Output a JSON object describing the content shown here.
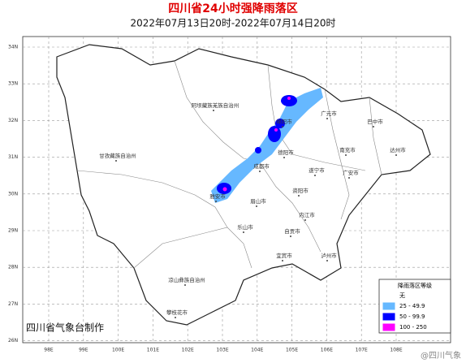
{
  "header": {
    "title": "四川省24小时强降雨落区",
    "subtitle": "2022年07月13日20时-2022年07月14日20时"
  },
  "map": {
    "lat_labels": [
      "34N",
      "33N",
      "32N",
      "31N",
      "30N",
      "29N",
      "28N",
      "27N",
      "26N"
    ],
    "lon_labels": [
      "98E",
      "99E",
      "100E",
      "101E",
      "102E",
      "103E",
      "104E",
      "105E",
      "106E",
      "107E",
      "108E"
    ],
    "places": [
      "阿坝藏族羌族自治州",
      "甘孜藏族自治州",
      "凉山彝族自治州",
      "广元市",
      "巴中市",
      "达州市",
      "绵阳市",
      "德阳市",
      "南充市",
      "广安市",
      "成都市",
      "遂宁市",
      "雅安市",
      "眉山市",
      "资阳市",
      "内江市",
      "乐山市",
      "自贡市",
      "宜宾市",
      "泸州市",
      "攀枝花市"
    ]
  },
  "legend": {
    "title": "降雨落区等级",
    "items": [
      {
        "label": "无",
        "color": "#ffffff"
      },
      {
        "label": "25 - 49.9",
        "color": "#66b8ff"
      },
      {
        "label": "50 - 99.9",
        "color": "#0000ff"
      },
      {
        "label": "100 - 250",
        "color": "#ff00ff"
      }
    ]
  },
  "footer": {
    "credit": "四川省气象台制作"
  },
  "watermark": "@四川气象"
}
